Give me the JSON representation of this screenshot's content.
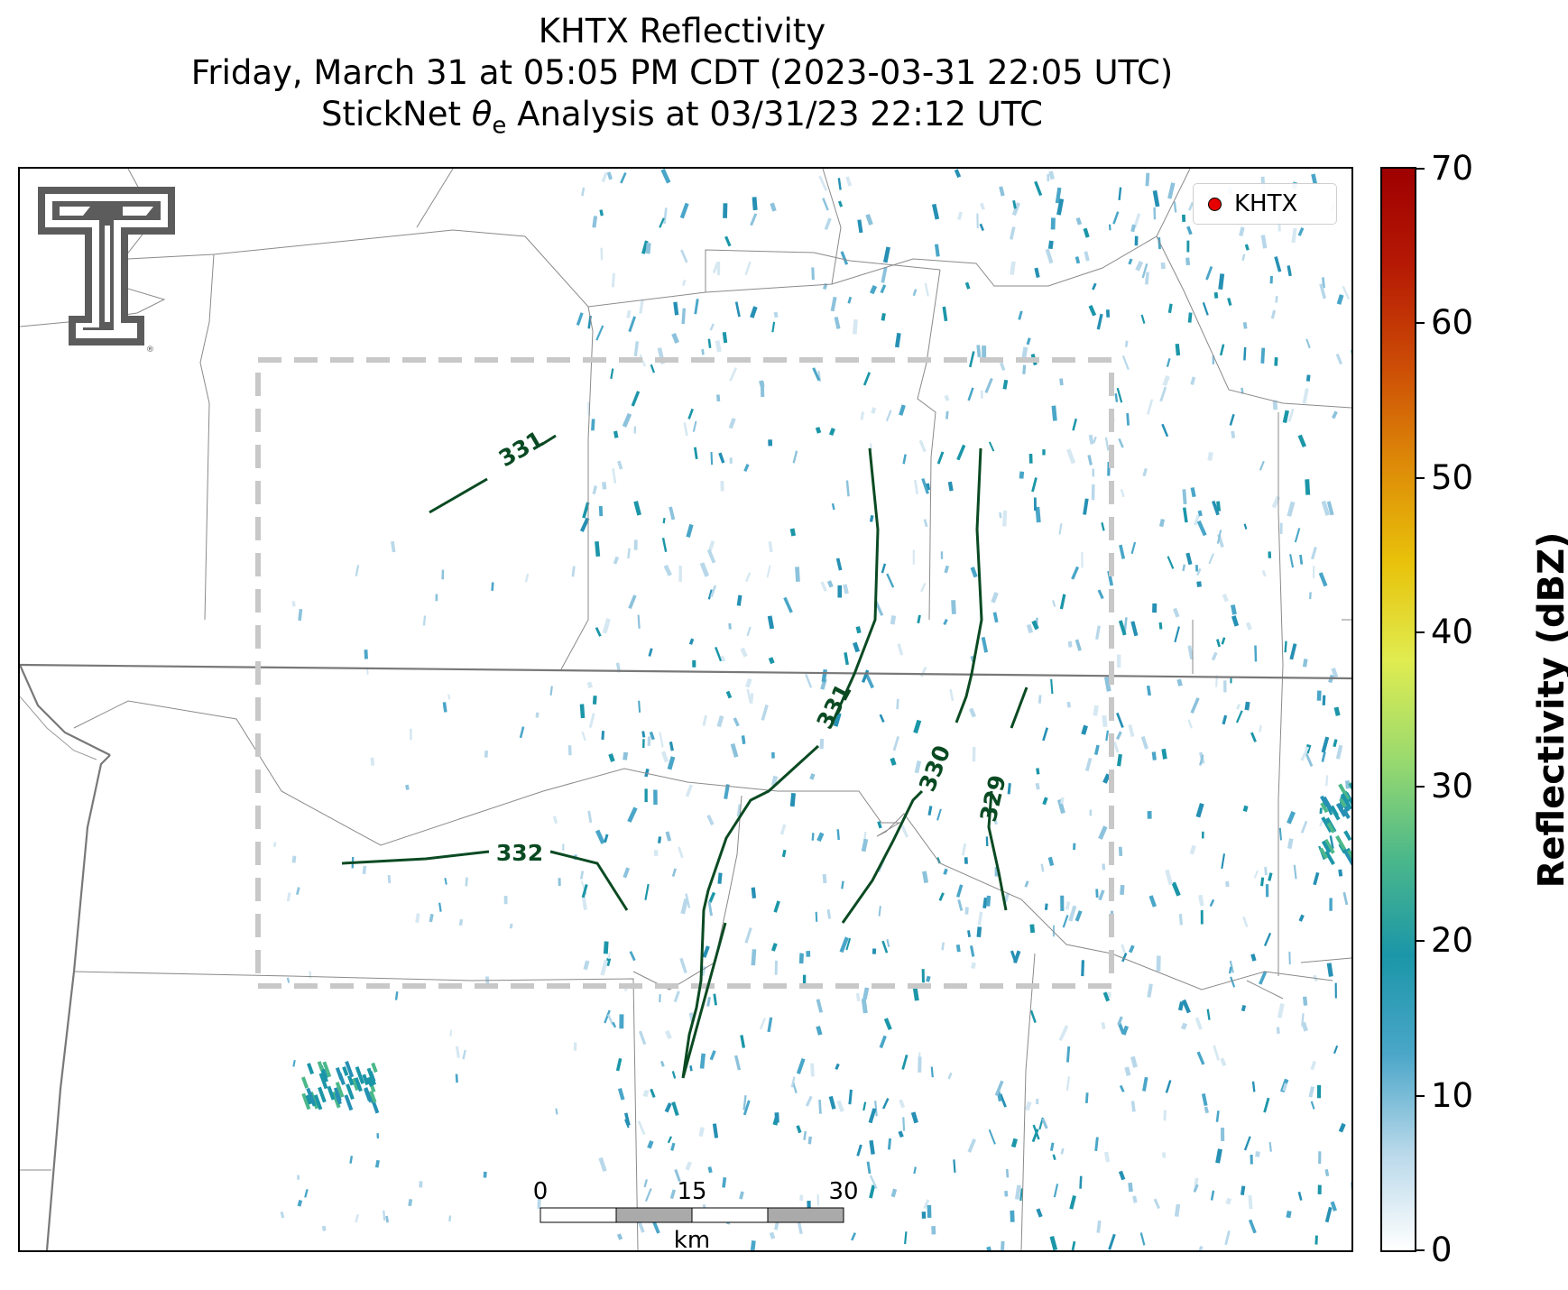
{
  "title": {
    "line1": "KHTX Reflectivity",
    "line2": "Friday, March 31 at 05:05 PM CDT (2023-03-31 22:05 UTC)",
    "line3_prefix": "StickNet ",
    "line3_theta": "θ",
    "line3_sub": "e",
    "line3_suffix": " Analysis at 03/31/23 22:12 UTC"
  },
  "legend": {
    "label": "KHTX",
    "marker_color": "#e60000"
  },
  "logo": {
    "icon": "texas-tech-double-t-logo",
    "registered_mark": "®"
  },
  "contours": [
    {
      "label": "331"
    },
    {
      "label": "332"
    },
    {
      "label": "331"
    },
    {
      "label": "330"
    },
    {
      "label": "329"
    }
  ],
  "scale_bar": {
    "ticks": [
      "0",
      "15",
      "30"
    ],
    "unit": "km"
  },
  "colorbar": {
    "title": "Reflectivity (dBZ)",
    "ticks": [
      "0",
      "10",
      "20",
      "30",
      "40",
      "50",
      "60",
      "70"
    ],
    "min": 0,
    "max": 70,
    "colors": [
      "#ffffff",
      "#b8d8ea",
      "#4aa6c8",
      "#1b96a8",
      "#4cb88a",
      "#9ada6e",
      "#e0ec50",
      "#e8c20a",
      "#dd8a08",
      "#cc4c06",
      "#b61a04",
      "#9e0000"
    ]
  },
  "analysis_box": {
    "color": "#c8c8c8"
  },
  "contour_color": "#0a4a22"
}
